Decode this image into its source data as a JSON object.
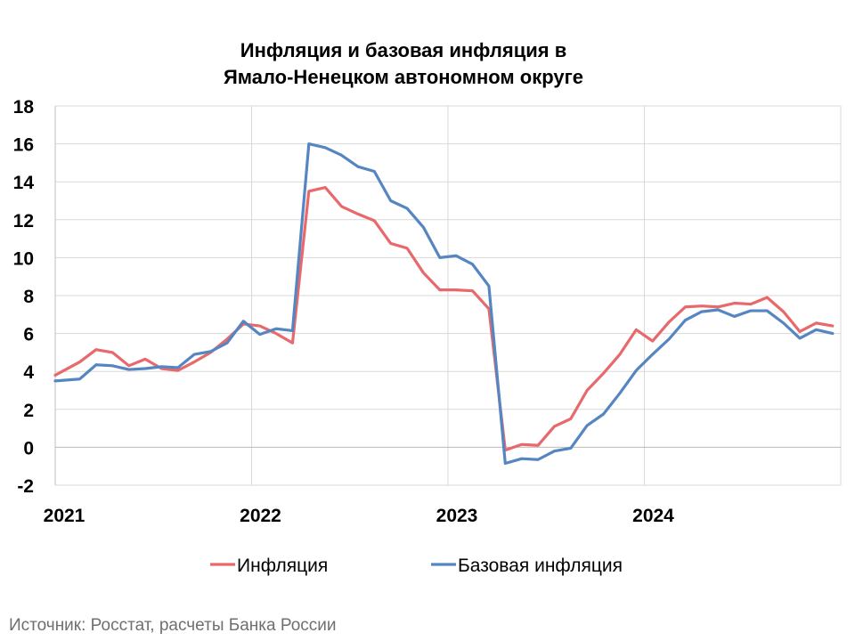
{
  "chart_data": {
    "type": "line",
    "title_line1": "Инфляция и базовая инфляция в",
    "title_line2": "Ямало-Ненецком автономном округе",
    "ylim": [
      -2,
      18
    ],
    "yticks": [
      "18",
      "16",
      "14",
      "12",
      "10",
      "8",
      "6",
      "4",
      "2",
      "0",
      "-2"
    ],
    "ytick_values": [
      18,
      16,
      14,
      12,
      10,
      8,
      6,
      4,
      2,
      0,
      -2
    ],
    "x_labels": [
      "2021",
      "2022",
      "2023",
      "2024"
    ],
    "grid": true,
    "legend_position": "bottom",
    "x": [
      "2021-01",
      "2021-02",
      "2021-03",
      "2021-04",
      "2021-05",
      "2021-06",
      "2021-07",
      "2021-08",
      "2021-09",
      "2021-10",
      "2021-11",
      "2021-12",
      "2022-01",
      "2022-02",
      "2022-03",
      "2022-04",
      "2022-05",
      "2022-06",
      "2022-07",
      "2022-08",
      "2022-09",
      "2022-10",
      "2022-11",
      "2022-12",
      "2023-01",
      "2023-02",
      "2023-03",
      "2023-04",
      "2023-05",
      "2023-06",
      "2023-07",
      "2023-08",
      "2023-09",
      "2023-10",
      "2023-11",
      "2023-12",
      "2024-01",
      "2024-02",
      "2024-03",
      "2024-04",
      "2024-05",
      "2024-06",
      "2024-07",
      "2024-08",
      "2024-09",
      "2024-10",
      "2024-11",
      "2024-12"
    ],
    "series": [
      {
        "name": "Инфляция",
        "color": "#e8696b",
        "values": [
          3.8,
          4.5,
          5.15,
          5.0,
          4.3,
          4.65,
          4.15,
          4.05,
          4.5,
          5.0,
          5.7,
          6.5,
          6.4,
          6.0,
          5.5,
          13.5,
          13.7,
          12.7,
          12.3,
          11.95,
          10.75,
          10.5,
          9.2,
          8.3,
          8.3,
          8.25,
          7.3,
          -0.15,
          0.15,
          0.1,
          1.1,
          1.5,
          3.0,
          3.9,
          4.9,
          6.2,
          5.6,
          6.6,
          7.4,
          7.45,
          7.4,
          7.6,
          7.55,
          7.9,
          7.15,
          6.1,
          6.55,
          6.4
        ]
      },
      {
        "name": "Базовая инфляция",
        "color": "#5586c2",
        "values": [
          3.5,
          3.6,
          4.35,
          4.3,
          4.1,
          4.15,
          4.25,
          4.2,
          4.9,
          5.05,
          5.5,
          6.65,
          5.95,
          6.25,
          6.15,
          16.0,
          15.8,
          15.4,
          14.8,
          14.55,
          13.0,
          12.6,
          11.6,
          10.0,
          10.1,
          9.65,
          8.5,
          -0.85,
          -0.6,
          -0.65,
          -0.2,
          -0.05,
          1.15,
          1.75,
          2.85,
          4.05,
          4.9,
          5.7,
          6.7,
          7.15,
          7.25,
          6.9,
          7.2,
          7.2,
          6.55,
          5.75,
          6.2,
          6.0
        ]
      }
    ]
  },
  "source": "Источник: Росстат, расчеты Банка России"
}
